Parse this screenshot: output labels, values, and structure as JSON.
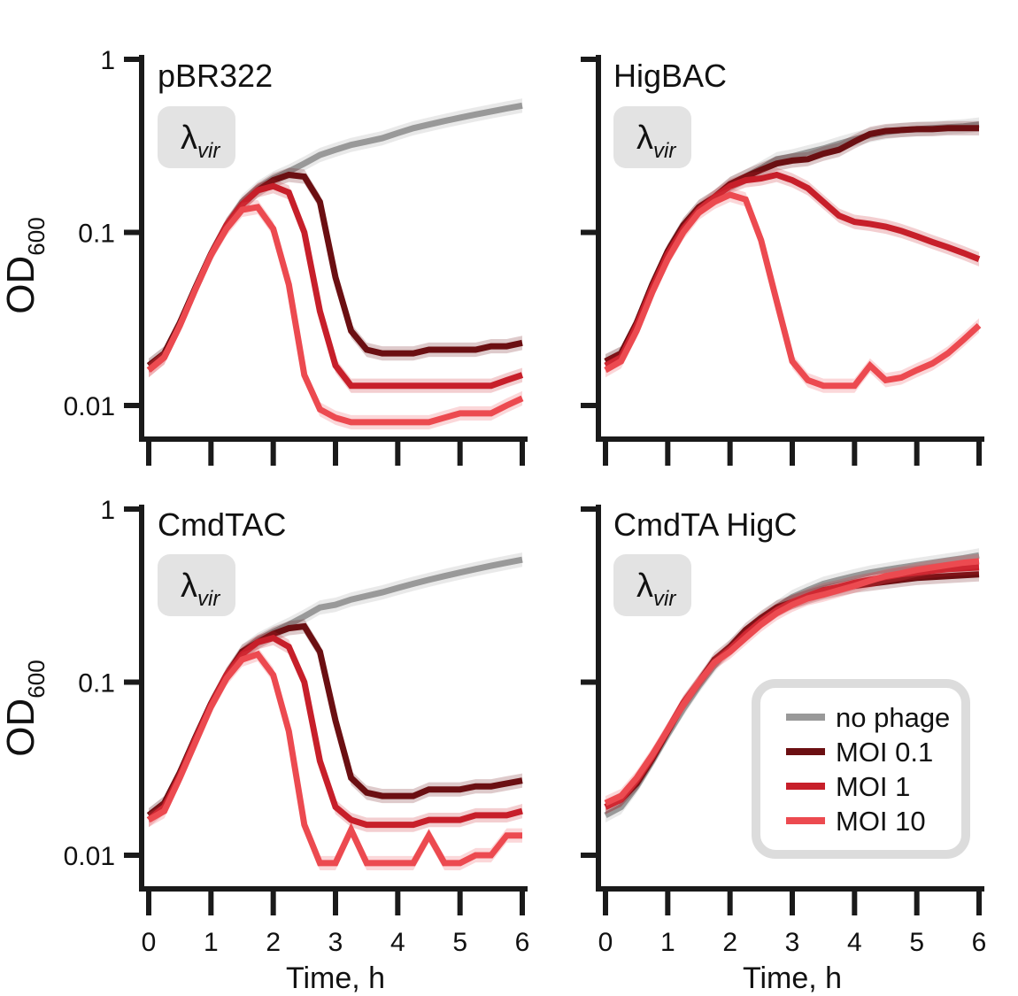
{
  "legend": {
    "entries": [
      {
        "label": "no phage",
        "color": "#999999"
      },
      {
        "label": "MOI 0.1",
        "color": "#6b0f12"
      },
      {
        "label": "MOI 1",
        "color": "#c71f2a"
      },
      {
        "label": "MOI 10",
        "color": "#ec4a50"
      }
    ]
  },
  "axes": {
    "ylabel_main": "OD",
    "ylabel_sub": "600",
    "xlabel": "Time, h",
    "yticks": [
      {
        "v": 1,
        "label": "1"
      },
      {
        "v": 0.1,
        "label": "0.1"
      },
      {
        "v": 0.01,
        "label": "0.01"
      }
    ],
    "xticks": [
      0,
      1,
      2,
      3,
      4,
      5,
      6
    ]
  },
  "phage_badge": {
    "symbol": "λ",
    "sub": "vir"
  },
  "chart_data": [
    {
      "type": "line",
      "title": "pBR322",
      "xlabel": "",
      "ylabel": "OD600",
      "xlim": [
        0,
        6
      ],
      "ylim": [
        0.005,
        1
      ],
      "yscale": "log",
      "x": [
        0,
        0.25,
        0.5,
        0.75,
        1,
        1.25,
        1.5,
        1.75,
        2,
        2.25,
        2.5,
        2.75,
        3,
        3.25,
        3.5,
        3.75,
        4,
        4.25,
        4.5,
        4.75,
        5,
        5.25,
        5.5,
        5.75,
        6
      ],
      "series": [
        {
          "name": "no phage",
          "values": [
            0.017,
            0.02,
            0.03,
            0.048,
            0.075,
            0.11,
            0.15,
            0.18,
            0.205,
            0.225,
            0.25,
            0.28,
            0.3,
            0.32,
            0.335,
            0.35,
            0.375,
            0.4,
            0.42,
            0.44,
            0.46,
            0.48,
            0.5,
            0.52,
            0.54
          ]
        },
        {
          "name": "MOI 0.1",
          "values": [
            0.017,
            0.02,
            0.03,
            0.048,
            0.075,
            0.11,
            0.145,
            0.175,
            0.2,
            0.215,
            0.21,
            0.15,
            0.055,
            0.027,
            0.021,
            0.02,
            0.02,
            0.02,
            0.021,
            0.021,
            0.021,
            0.021,
            0.022,
            0.022,
            0.023
          ]
        },
        {
          "name": "MOI 1",
          "values": [
            0.016,
            0.019,
            0.029,
            0.047,
            0.074,
            0.11,
            0.145,
            0.175,
            0.185,
            0.17,
            0.1,
            0.035,
            0.017,
            0.013,
            0.013,
            0.013,
            0.013,
            0.013,
            0.013,
            0.013,
            0.013,
            0.013,
            0.013,
            0.014,
            0.015
          ]
        },
        {
          "name": "MOI 10",
          "values": [
            0.016,
            0.019,
            0.029,
            0.047,
            0.074,
            0.105,
            0.135,
            0.14,
            0.105,
            0.05,
            0.015,
            0.0095,
            0.0085,
            0.008,
            0.008,
            0.008,
            0.008,
            0.008,
            0.008,
            0.0085,
            0.009,
            0.009,
            0.009,
            0.01,
            0.011
          ]
        }
      ]
    },
    {
      "type": "line",
      "title": "HigBAC",
      "xlabel": "",
      "ylabel": "",
      "xlim": [
        0,
        6
      ],
      "ylim": [
        0.005,
        1
      ],
      "yscale": "log",
      "x": [
        0,
        0.25,
        0.5,
        0.75,
        1,
        1.25,
        1.5,
        1.75,
        2,
        2.25,
        2.5,
        2.75,
        3,
        3.25,
        3.5,
        3.75,
        4,
        4.25,
        4.5,
        4.75,
        5,
        5.25,
        5.5,
        5.75,
        6
      ],
      "series": [
        {
          "name": "no phage",
          "values": [
            0.018,
            0.02,
            0.03,
            0.05,
            0.078,
            0.11,
            0.14,
            0.16,
            0.19,
            0.21,
            0.235,
            0.265,
            0.275,
            0.29,
            0.305,
            0.325,
            0.345,
            0.365,
            0.38,
            0.39,
            0.395,
            0.4,
            0.405,
            0.41,
            0.42
          ]
        },
        {
          "name": "MOI 0.1",
          "values": [
            0.018,
            0.02,
            0.03,
            0.05,
            0.078,
            0.11,
            0.14,
            0.16,
            0.19,
            0.21,
            0.23,
            0.25,
            0.26,
            0.265,
            0.285,
            0.3,
            0.335,
            0.37,
            0.385,
            0.39,
            0.395,
            0.395,
            0.4,
            0.4,
            0.4
          ]
        },
        {
          "name": "MOI 1",
          "values": [
            0.017,
            0.019,
            0.029,
            0.048,
            0.075,
            0.105,
            0.135,
            0.16,
            0.185,
            0.2,
            0.205,
            0.215,
            0.2,
            0.18,
            0.15,
            0.125,
            0.115,
            0.112,
            0.108,
            0.102,
            0.095,
            0.088,
            0.082,
            0.076,
            0.07
          ]
        },
        {
          "name": "MOI 10",
          "values": [
            0.016,
            0.018,
            0.027,
            0.045,
            0.07,
            0.1,
            0.13,
            0.15,
            0.165,
            0.155,
            0.09,
            0.04,
            0.018,
            0.014,
            0.013,
            0.013,
            0.013,
            0.017,
            0.014,
            0.0145,
            0.016,
            0.0175,
            0.02,
            0.024,
            0.029
          ]
        }
      ]
    },
    {
      "type": "line",
      "title": "CmdTAC",
      "xlabel": "Time, h",
      "ylabel": "OD600",
      "xlim": [
        0,
        6
      ],
      "ylim": [
        0.005,
        1
      ],
      "yscale": "log",
      "x": [
        0,
        0.25,
        0.5,
        0.75,
        1,
        1.25,
        1.5,
        1.75,
        2,
        2.25,
        2.5,
        2.75,
        3,
        3.25,
        3.5,
        3.75,
        4,
        4.25,
        4.5,
        4.75,
        5,
        5.25,
        5.5,
        5.75,
        6
      ],
      "series": [
        {
          "name": "no phage",
          "values": [
            0.017,
            0.02,
            0.03,
            0.048,
            0.075,
            0.11,
            0.15,
            0.175,
            0.195,
            0.215,
            0.24,
            0.27,
            0.28,
            0.3,
            0.315,
            0.33,
            0.35,
            0.37,
            0.39,
            0.41,
            0.43,
            0.45,
            0.47,
            0.49,
            0.51
          ]
        },
        {
          "name": "MOI 0.1",
          "values": [
            0.017,
            0.02,
            0.03,
            0.048,
            0.075,
            0.11,
            0.15,
            0.17,
            0.19,
            0.205,
            0.21,
            0.15,
            0.06,
            0.028,
            0.023,
            0.022,
            0.022,
            0.022,
            0.024,
            0.024,
            0.024,
            0.025,
            0.025,
            0.026,
            0.027
          ]
        },
        {
          "name": "MOI 1",
          "values": [
            0.016,
            0.019,
            0.029,
            0.047,
            0.074,
            0.11,
            0.145,
            0.17,
            0.18,
            0.16,
            0.1,
            0.035,
            0.019,
            0.016,
            0.015,
            0.015,
            0.015,
            0.015,
            0.016,
            0.016,
            0.016,
            0.017,
            0.017,
            0.017,
            0.018
          ]
        },
        {
          "name": "MOI 10",
          "values": [
            0.016,
            0.018,
            0.028,
            0.045,
            0.072,
            0.105,
            0.135,
            0.145,
            0.11,
            0.052,
            0.015,
            0.009,
            0.009,
            0.014,
            0.009,
            0.009,
            0.009,
            0.009,
            0.013,
            0.009,
            0.009,
            0.01,
            0.01,
            0.013,
            0.013
          ]
        }
      ]
    },
    {
      "type": "line",
      "title": "CmdTA HigC",
      "xlabel": "Time, h",
      "ylabel": "",
      "xlim": [
        0,
        6
      ],
      "ylim": [
        0.005,
        1
      ],
      "yscale": "log",
      "x": [
        0,
        0.25,
        0.5,
        0.75,
        1,
        1.25,
        1.5,
        1.75,
        2,
        2.25,
        2.5,
        2.75,
        3,
        3.25,
        3.5,
        3.75,
        4,
        4.25,
        4.5,
        4.75,
        5,
        5.25,
        5.5,
        5.75,
        6
      ],
      "legend_position": "bottom-right",
      "series": [
        {
          "name": "no phage",
          "values": [
            0.017,
            0.019,
            0.025,
            0.035,
            0.05,
            0.07,
            0.095,
            0.125,
            0.16,
            0.19,
            0.23,
            0.27,
            0.31,
            0.34,
            0.37,
            0.39,
            0.41,
            0.43,
            0.445,
            0.46,
            0.475,
            0.49,
            0.505,
            0.52,
            0.54
          ]
        },
        {
          "name": "MOI 0.1",
          "values": [
            0.019,
            0.021,
            0.026,
            0.036,
            0.052,
            0.075,
            0.1,
            0.135,
            0.16,
            0.2,
            0.235,
            0.27,
            0.29,
            0.31,
            0.33,
            0.345,
            0.36,
            0.37,
            0.38,
            0.39,
            0.4,
            0.405,
            0.41,
            0.415,
            0.42
          ]
        },
        {
          "name": "MOI 1",
          "values": [
            0.019,
            0.021,
            0.027,
            0.037,
            0.053,
            0.076,
            0.1,
            0.13,
            0.155,
            0.19,
            0.225,
            0.26,
            0.29,
            0.315,
            0.34,
            0.355,
            0.375,
            0.39,
            0.405,
            0.42,
            0.43,
            0.44,
            0.45,
            0.455,
            0.46
          ]
        },
        {
          "name": "MOI 10",
          "values": [
            0.02,
            0.022,
            0.028,
            0.038,
            0.053,
            0.074,
            0.1,
            0.13,
            0.15,
            0.18,
            0.215,
            0.25,
            0.28,
            0.305,
            0.32,
            0.34,
            0.36,
            0.385,
            0.41,
            0.425,
            0.445,
            0.46,
            0.475,
            0.49,
            0.5
          ]
        }
      ]
    }
  ]
}
